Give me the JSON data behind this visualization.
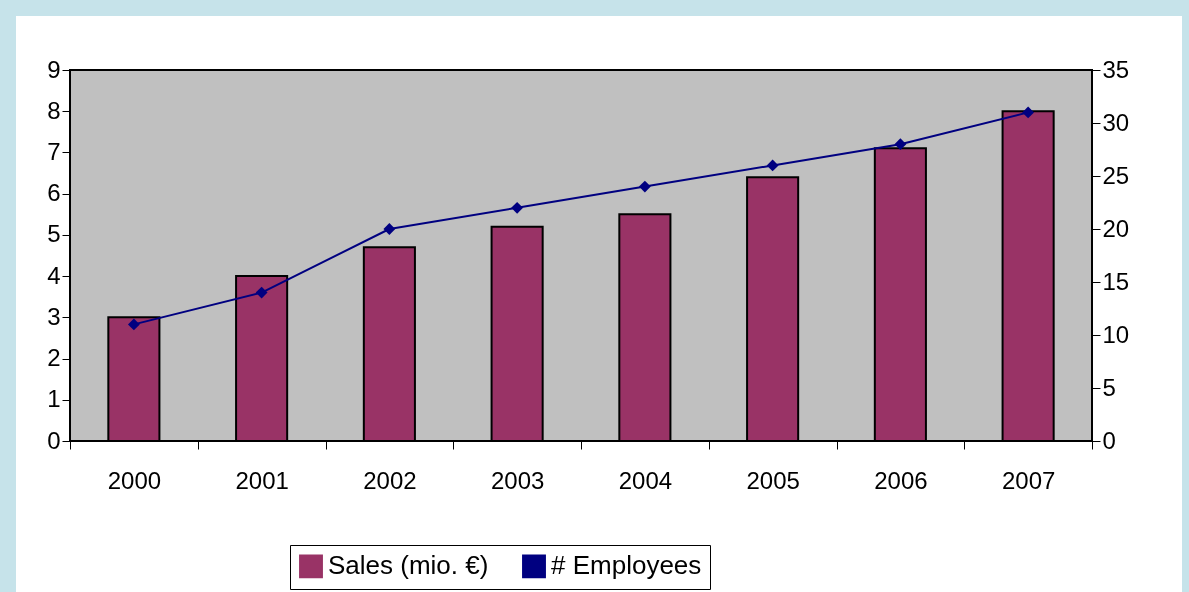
{
  "chart_data": {
    "type": "bar",
    "categories": [
      "2000",
      "2001",
      "2002",
      "2003",
      "2004",
      "2005",
      "2006",
      "2007"
    ],
    "series": [
      {
        "name": "Sales (mio. €)",
        "color": "#993366",
        "values": [
          3.0,
          4.0,
          4.7,
          5.2,
          5.5,
          6.4,
          7.1,
          8.0
        ]
      },
      {
        "name": "# Employees",
        "type": "line",
        "axis": "y2",
        "color": "#000080",
        "values": [
          11,
          14,
          20,
          22,
          24,
          26,
          28,
          31
        ]
      }
    ],
    "ylim": [
      0,
      9
    ],
    "yticks": [
      0,
      1,
      2,
      3,
      4,
      5,
      6,
      7,
      8,
      9
    ],
    "y2lim": [
      0,
      35
    ],
    "y2ticks": [
      0,
      5,
      10,
      15,
      20,
      25,
      30,
      35
    ],
    "grid": false,
    "legend": "bottom",
    "marker": "diamond",
    "line_style": "solid"
  }
}
